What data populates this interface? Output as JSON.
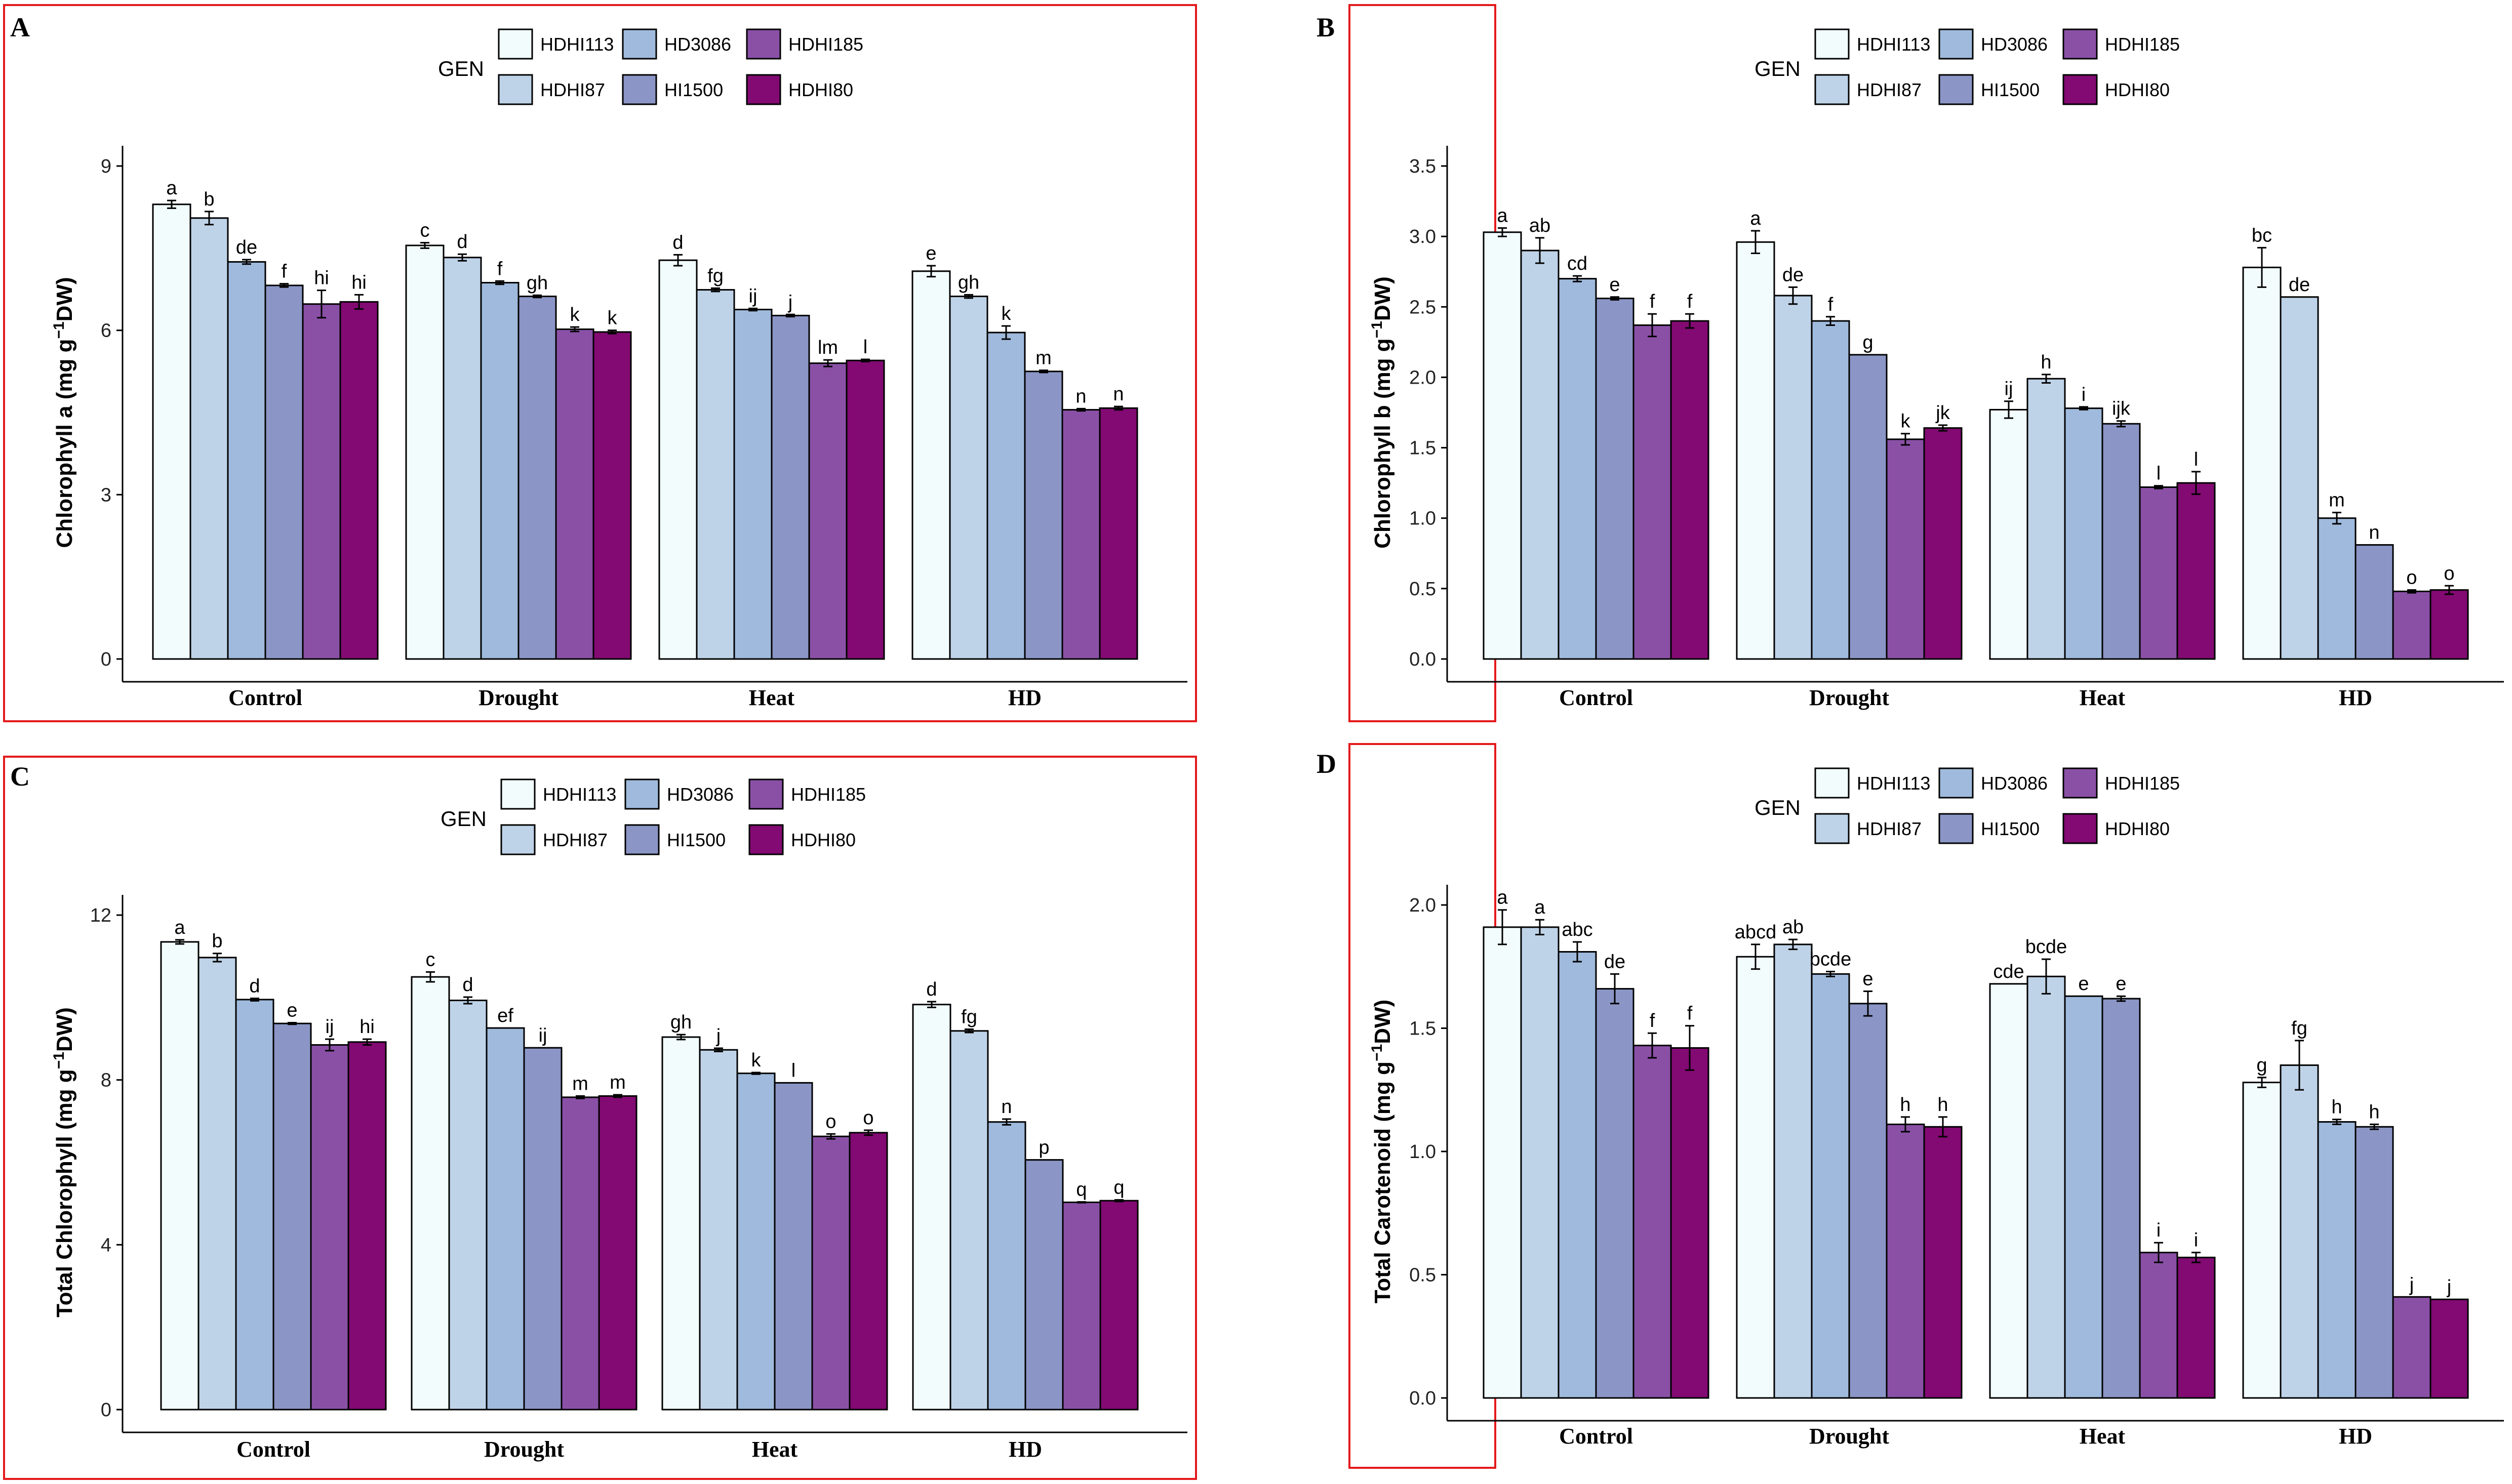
{
  "colors": {
    "HDHI113": "#f2fcfd",
    "HDHI87": "#bfd3e8",
    "HD3086": "#9fbadc",
    "HI1500": "#8b96c6",
    "HDHI185": "#8a50a6",
    "HDHI80": "#820a72",
    "frame": "#e31a1c"
  },
  "legend": {
    "title": "GEN",
    "entries": [
      "HDHI113",
      "HD3086",
      "HDHI185",
      "HDHI87",
      "HI1500",
      "HDHI80"
    ]
  },
  "chart_data": [
    {
      "panel": "A",
      "type": "bar",
      "ylabel_main": "Chlorophyll a (mg g",
      "ylabel_sup": "−1",
      "ylabel_end": "DW)",
      "categories": [
        "Control",
        "Drought",
        "Heat",
        "HD"
      ],
      "ylim": [
        0,
        9
      ],
      "yticks": [
        0,
        3,
        6,
        9
      ],
      "series": [
        {
          "name": "HDHI113",
          "values": [
            8.3,
            7.55,
            7.28,
            7.08
          ],
          "errors": [
            0.07,
            0.05,
            0.1,
            0.1
          ],
          "letters": [
            "a",
            "c",
            "d",
            "e"
          ]
        },
        {
          "name": "HDHI87",
          "values": [
            8.05,
            7.33,
            6.74,
            6.62
          ],
          "errors": [
            0.12,
            0.06,
            0.03,
            0.03
          ],
          "letters": [
            "b",
            "d",
            "fg",
            "gh"
          ]
        },
        {
          "name": "HD3086",
          "values": [
            7.25,
            6.87,
            6.38,
            5.96
          ],
          "errors": [
            0.04,
            0.03,
            0.02,
            0.12
          ],
          "letters": [
            "de",
            "f",
            "ij",
            "k"
          ]
        },
        {
          "name": "HI1500",
          "values": [
            6.82,
            6.62,
            6.27,
            5.25
          ],
          "errors": [
            0.03,
            0.02,
            0.02,
            0.02
          ],
          "letters": [
            "f",
            "gh",
            "j",
            "m"
          ]
        },
        {
          "name": "HDHI185",
          "values": [
            6.48,
            6.02,
            5.4,
            4.55
          ],
          "errors": [
            0.25,
            0.04,
            0.06,
            0.02
          ],
          "letters": [
            "hi",
            "k",
            "lm",
            "n"
          ]
        },
        {
          "name": "HDHI80",
          "values": [
            6.52,
            5.97,
            5.45,
            4.58
          ],
          "errors": [
            0.13,
            0.03,
            0.02,
            0.03
          ],
          "letters": [
            "hi",
            "k",
            "l",
            "n"
          ]
        }
      ]
    },
    {
      "panel": "B",
      "type": "bar",
      "ylabel_main": "Chlorophyll b (mg g",
      "ylabel_sup": "−1",
      "ylabel_end": "DW)",
      "categories": [
        "Control",
        "Drought",
        "Heat",
        "HD"
      ],
      "ylim": [
        0,
        3.5
      ],
      "yticks": [
        0.0,
        0.5,
        1.0,
        1.5,
        2.0,
        2.5,
        3.0,
        3.5
      ],
      "tick_decimals": 1,
      "series": [
        {
          "name": "HDHI113",
          "values": [
            3.03,
            2.96,
            1.77,
            2.78
          ],
          "errors": [
            0.03,
            0.08,
            0.06,
            0.14
          ],
          "letters": [
            "a",
            "a",
            "ij",
            "bc"
          ]
        },
        {
          "name": "HDHI87",
          "values": [
            2.9,
            2.58,
            1.99,
            2.57
          ],
          "errors": [
            0.09,
            0.06,
            0.03,
            0.0
          ],
          "letters": [
            "ab",
            "de",
            "h",
            "de"
          ]
        },
        {
          "name": "HD3086",
          "values": [
            2.7,
            2.4,
            1.78,
            1.0
          ],
          "errors": [
            0.02,
            0.03,
            0.01,
            0.04
          ],
          "letters": [
            "cd",
            "f",
            "i",
            "m"
          ]
        },
        {
          "name": "HI1500",
          "values": [
            2.56,
            2.16,
            1.67,
            0.81
          ],
          "errors": [
            0.01,
            0.0,
            0.02,
            0.0
          ],
          "letters": [
            "e",
            "g",
            "ijk",
            "n"
          ]
        },
        {
          "name": "HDHI185",
          "values": [
            2.37,
            1.56,
            1.22,
            0.48
          ],
          "errors": [
            0.08,
            0.04,
            0.01,
            0.01
          ],
          "letters": [
            "f",
            "k",
            "l",
            "o"
          ]
        },
        {
          "name": "HDHI80",
          "values": [
            2.4,
            1.64,
            1.25,
            0.49
          ],
          "errors": [
            0.05,
            0.02,
            0.08,
            0.03
          ],
          "letters": [
            "f",
            "jk",
            "l",
            "o"
          ]
        }
      ]
    },
    {
      "panel": "C",
      "type": "bar",
      "ylabel_main": "Total Chlorophyll (mg g",
      "ylabel_sup": "−1",
      "ylabel_end": "DW)",
      "categories": [
        "Control",
        "Drought",
        "Heat",
        "HD"
      ],
      "ylim": [
        0,
        12
      ],
      "yticks": [
        0,
        4,
        8,
        12
      ],
      "series": [
        {
          "name": "HDHI113",
          "values": [
            11.35,
            10.5,
            9.04,
            9.83
          ],
          "errors": [
            0.05,
            0.12,
            0.06,
            0.07
          ],
          "letters": [
            "a",
            "c",
            "gh",
            "d"
          ]
        },
        {
          "name": "HDHI87",
          "values": [
            10.97,
            9.93,
            8.73,
            9.19
          ],
          "errors": [
            0.1,
            0.08,
            0.04,
            0.04
          ],
          "letters": [
            "b",
            "d",
            "j",
            "fg"
          ]
        },
        {
          "name": "HD3086",
          "values": [
            9.95,
            9.26,
            8.16,
            6.98
          ],
          "errors": [
            0.03,
            0.0,
            0.02,
            0.07
          ],
          "letters": [
            "d",
            "ef",
            "k",
            "n"
          ]
        },
        {
          "name": "HI1500",
          "values": [
            9.37,
            8.78,
            7.93,
            6.06
          ],
          "errors": [
            0.02,
            0.0,
            0.0,
            0.0
          ],
          "letters": [
            "e",
            "ij",
            "l",
            "p"
          ]
        },
        {
          "name": "HDHI185",
          "values": [
            8.85,
            7.58,
            6.63,
            5.03
          ],
          "errors": [
            0.14,
            0.03,
            0.06,
            0.01
          ],
          "letters": [
            "ij",
            "m",
            "o",
            "q"
          ]
        },
        {
          "name": "HDHI80",
          "values": [
            8.92,
            7.61,
            6.72,
            5.07
          ],
          "errors": [
            0.07,
            0.03,
            0.06,
            0.02
          ],
          "letters": [
            "hi",
            "m",
            "o",
            "q"
          ]
        }
      ]
    },
    {
      "panel": "D",
      "type": "bar",
      "ylabel_main": "Total Carotenoid (mg g",
      "ylabel_sup": "−1",
      "ylabel_end": "DW)",
      "categories": [
        "Control",
        "Drought",
        "Heat",
        "HD"
      ],
      "ylim": [
        0,
        2.0
      ],
      "yticks": [
        0.0,
        0.5,
        1.0,
        1.5,
        2.0
      ],
      "tick_decimals": 1,
      "series": [
        {
          "name": "HDHI113",
          "values": [
            1.91,
            1.79,
            1.68,
            1.28
          ],
          "errors": [
            0.07,
            0.05,
            0.0,
            0.02
          ],
          "letters": [
            "a",
            "abcd",
            "cde",
            "g"
          ]
        },
        {
          "name": "HDHI87",
          "values": [
            1.91,
            1.84,
            1.71,
            1.35
          ],
          "errors": [
            0.03,
            0.02,
            0.07,
            0.1
          ],
          "letters": [
            "a",
            "ab",
            "bcde",
            "fg"
          ]
        },
        {
          "name": "HD3086",
          "values": [
            1.81,
            1.72,
            1.63,
            1.12
          ],
          "errors": [
            0.04,
            0.01,
            0.0,
            0.01
          ],
          "letters": [
            "abc",
            "bcde",
            "e",
            "h"
          ]
        },
        {
          "name": "HI1500",
          "values": [
            1.66,
            1.6,
            1.62,
            1.1
          ],
          "errors": [
            0.06,
            0.05,
            0.01,
            0.01
          ],
          "letters": [
            "de",
            "e",
            "e",
            "h"
          ]
        },
        {
          "name": "HDHI185",
          "values": [
            1.43,
            1.11,
            0.59,
            0.41
          ],
          "errors": [
            0.05,
            0.03,
            0.04,
            0.0
          ],
          "letters": [
            "f",
            "h",
            "i",
            "j"
          ]
        },
        {
          "name": "HDHI80",
          "values": [
            1.42,
            1.1,
            0.57,
            0.4
          ],
          "errors": [
            0.09,
            0.04,
            0.02,
            0.0
          ],
          "letters": [
            "f",
            "h",
            "i",
            "j"
          ]
        }
      ]
    }
  ]
}
